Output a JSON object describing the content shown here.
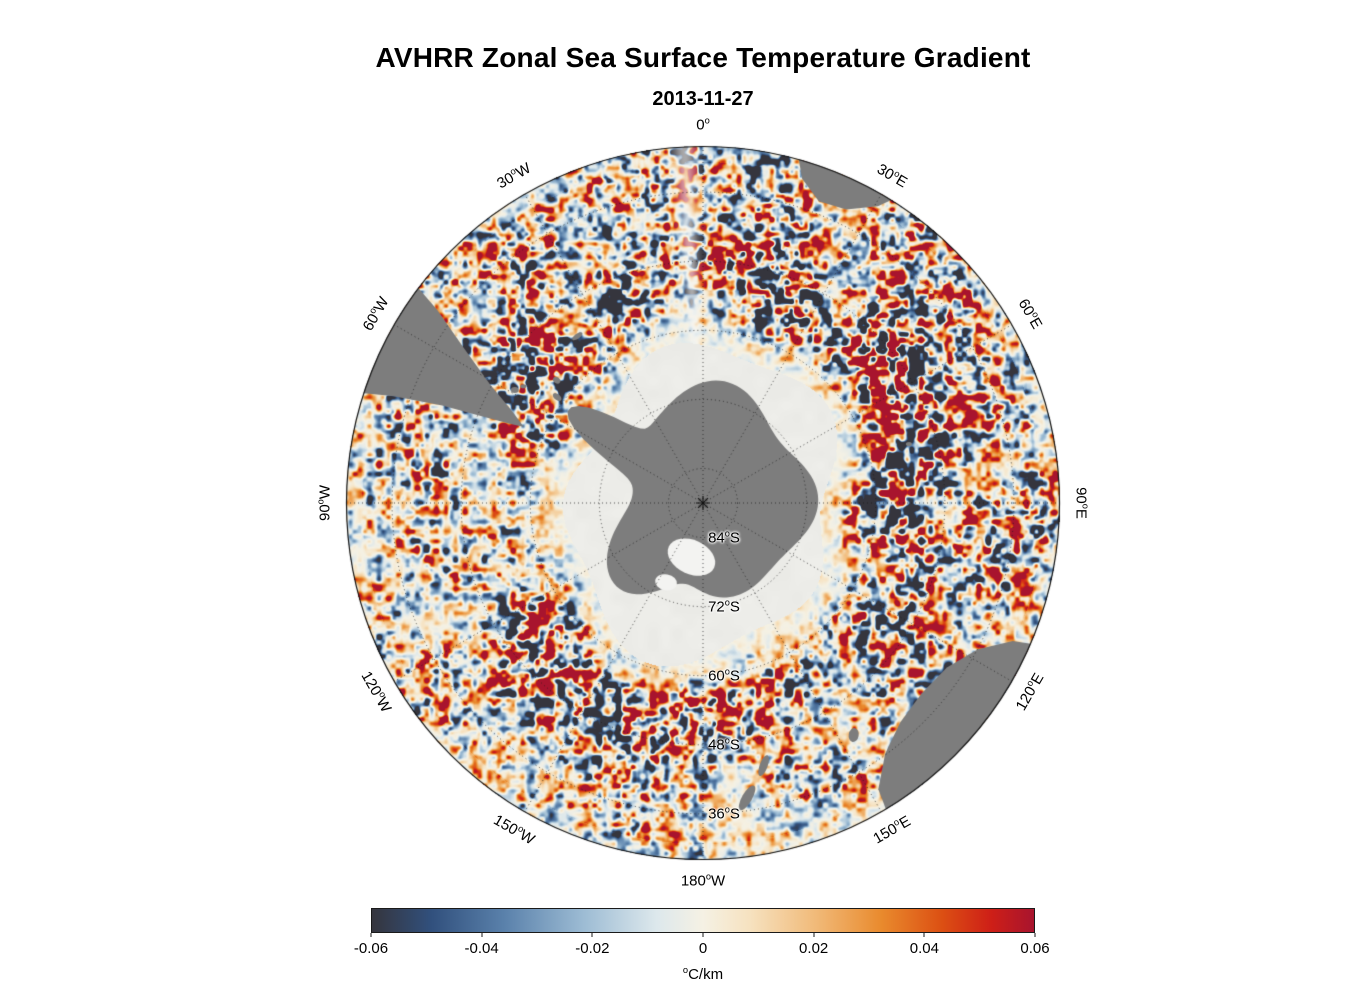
{
  "figure": {
    "title": "AVHRR Zonal Sea Surface Temperature Gradient",
    "subtitle": "2013-11-27"
  },
  "map": {
    "longitude_labels": [
      {
        "text": "0°",
        "angle": 0
      },
      {
        "text": "30°E",
        "angle": 30
      },
      {
        "text": "60°E",
        "angle": 60
      },
      {
        "text": "90°E",
        "angle": 90
      },
      {
        "text": "120°E",
        "angle": 120
      },
      {
        "text": "150°E",
        "angle": 150
      },
      {
        "text": "180°W",
        "angle": 180
      },
      {
        "text": "150°W",
        "angle": 210
      },
      {
        "text": "120°W",
        "angle": 240
      },
      {
        "text": "90°W",
        "angle": 270
      },
      {
        "text": "60°W",
        "angle": 300
      },
      {
        "text": "30°W",
        "angle": 330
      }
    ],
    "latitude_labels": [
      {
        "text": "84°S",
        "lat": 84
      },
      {
        "text": "72°S",
        "lat": 72
      },
      {
        "text": "60°S",
        "lat": 60
      },
      {
        "text": "48°S",
        "lat": 48
      },
      {
        "text": "36°S",
        "lat": 36
      }
    ],
    "land_color": "#7d7d7d",
    "ice_color": "#ececE8"
  },
  "colorbar": {
    "label": "°C/km",
    "ticks": [
      "-0.06",
      "-0.04",
      "-0.02",
      "0",
      "0.02",
      "0.04",
      "0.06"
    ],
    "stops": [
      [
        0.0,
        "#35353d"
      ],
      [
        0.09,
        "#31507d"
      ],
      [
        0.2,
        "#5a81ab"
      ],
      [
        0.32,
        "#9dbcd4"
      ],
      [
        0.43,
        "#dde8ec"
      ],
      [
        0.5,
        "#f5f1e4"
      ],
      [
        0.57,
        "#f6e2c0"
      ],
      [
        0.67,
        "#f1ba79"
      ],
      [
        0.77,
        "#e98a2d"
      ],
      [
        0.86,
        "#dc5013"
      ],
      [
        0.935,
        "#ce1f17"
      ],
      [
        1.0,
        "#a8142e"
      ]
    ]
  },
  "chart_data": {
    "type": "heatmap",
    "title": "AVHRR Zonal Sea Surface Temperature Gradient",
    "date": "2013-11-27",
    "variable": "Zonal sea surface temperature gradient",
    "units": "°C/km",
    "projection": "South polar stereographic map centered on Antarctica",
    "colorbar": {
      "orientation": "horizontal",
      "min": -0.06,
      "max": 0.06,
      "ticks": [
        -0.06,
        -0.04,
        -0.02,
        0,
        0.02,
        0.04,
        0.06
      ],
      "label": "°C/km",
      "palette": "diverging dark-blue to white to dark-red"
    },
    "longitude_gridline_spacing_deg": 30,
    "longitude_labels": [
      "0°",
      "30°E",
      "60°E",
      "90°E",
      "120°E",
      "150°E",
      "180°W",
      "150°W",
      "120°W",
      "90°W",
      "60°W",
      "30°W"
    ],
    "latitude_ring_labels": [
      "84°S",
      "72°S",
      "60°S",
      "48°S",
      "36°S"
    ],
    "grid_style": "dotted graticule, rings every 12° latitude, spokes every 30° longitude",
    "visible_features": [
      "Antarctica and surrounding land masses (South America, southern Africa, Australia, Tasmania, New Zealand) masked in gray",
      "flat pale gray sea-ice / no-data zone surrounding Antarctica",
      "speckled positive (red) and negative (blue) gradient filaments throughout the Southern Ocean, strongest near 30°E-60°E and around the circumpolar current band"
    ]
  }
}
